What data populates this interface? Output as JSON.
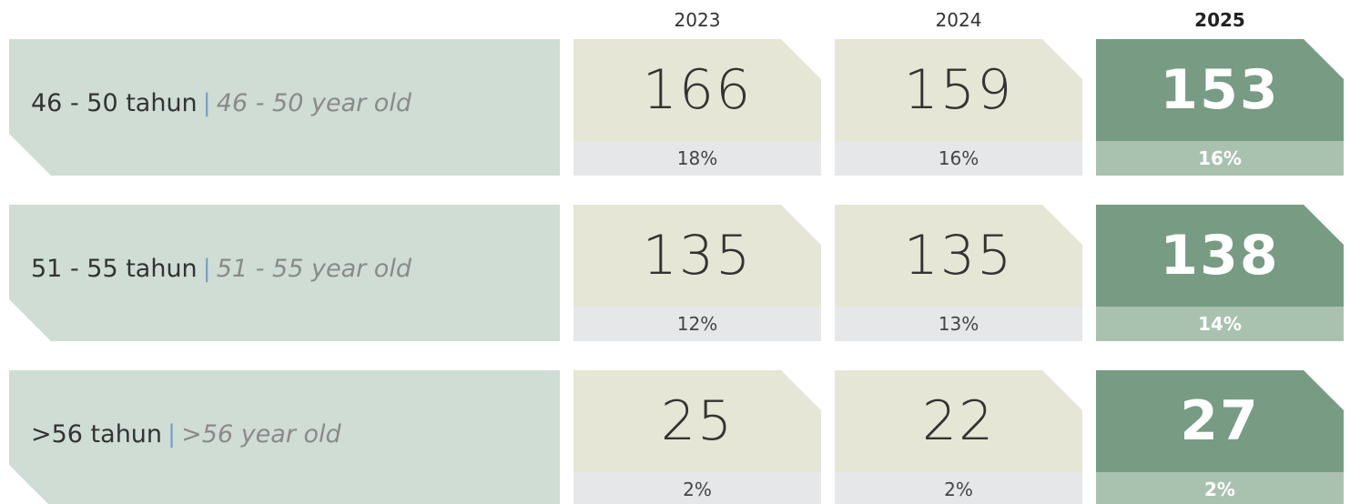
{
  "header": {
    "years": [
      "2023",
      "2024",
      "2025"
    ]
  },
  "rows": [
    {
      "label": "46 - 50 tahun",
      "separator": "|",
      "label_en": "46 - 50 year old",
      "values": [
        166,
        159,
        153
      ],
      "percents": [
        "18%",
        "16%",
        "16%"
      ]
    },
    {
      "label": "51 - 55 tahun",
      "separator": "|",
      "label_en": "51 - 55 year old",
      "values": [
        135,
        135,
        138
      ],
      "percents": [
        "12%",
        "13%",
        "14%"
      ]
    },
    {
      "label": ">56 tahun",
      "separator": "|",
      "label_en": ">56 year old",
      "values": [
        25,
        22,
        27
      ],
      "percents": [
        "2%",
        "2%",
        "2%"
      ]
    }
  ]
}
